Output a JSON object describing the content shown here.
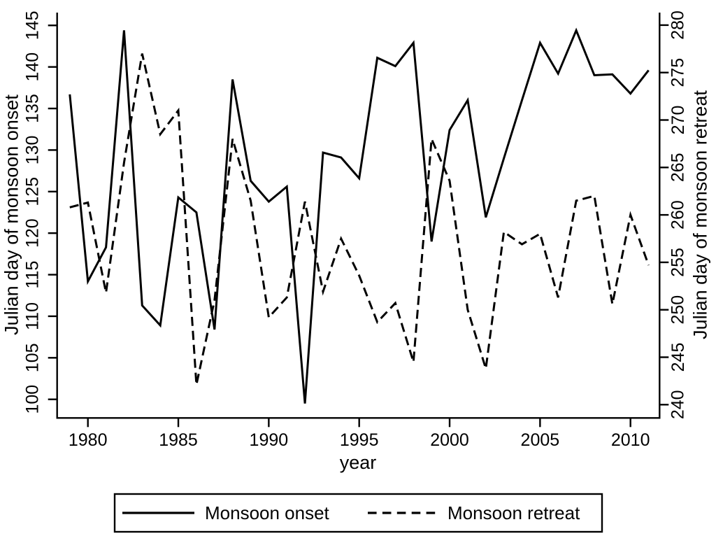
{
  "figure": {
    "background": "#ffffff",
    "line_color": "#000000"
  },
  "chart_data": {
    "type": "line",
    "title": "",
    "xlabel": "year",
    "ylabel_left": "Julian day of monsoon onset",
    "ylabel_right": "Julian day of monsoon retreat",
    "grid": false,
    "legend_position": "bottom",
    "x": [
      1979,
      1980,
      1981,
      1982,
      1983,
      1984,
      1985,
      1986,
      1987,
      1988,
      1989,
      1990,
      1991,
      1992,
      1993,
      1994,
      1995,
      1996,
      1997,
      1998,
      1999,
      2000,
      2001,
      2002,
      2003,
      2004,
      2005,
      2006,
      2007,
      2008,
      2009,
      2010,
      2011
    ],
    "x_ticks": [
      1980,
      1985,
      1990,
      1995,
      2000,
      2005,
      2010
    ],
    "y_left_ticks": [
      100,
      105,
      110,
      115,
      120,
      125,
      130,
      135,
      140,
      145
    ],
    "y_right_ticks": [
      240,
      245,
      250,
      255,
      260,
      265,
      270,
      275,
      280
    ],
    "ylim_left": [
      100,
      145
    ],
    "ylim_right": [
      240,
      280
    ],
    "series": [
      {
        "name": "Monsoon onset",
        "axis": "left",
        "style": "solid",
        "color": "#000000",
        "values": [
          136.7,
          114.2,
          118.3,
          144.4,
          111.3,
          108.9,
          124.3,
          122.5,
          108.4,
          138.5,
          126.3,
          123.8,
          125.6,
          99.5,
          129.7,
          129.1,
          126.6,
          141.1,
          140.1,
          142.9,
          119.0,
          132.4,
          136.0,
          121.9,
          129.0,
          136.0,
          142.9,
          139.2,
          144.4,
          139.0,
          139.1,
          136.8,
          139.6
        ]
      },
      {
        "name": "Monsoon retreat",
        "axis": "right",
        "style": "dashed",
        "color": "#000000",
        "values": [
          260.8,
          261.3,
          251.8,
          265.5,
          277.0,
          268.5,
          271.0,
          242.1,
          251.0,
          268.0,
          261.5,
          249.2,
          251.3,
          261.4,
          251.9,
          257.5,
          253.6,
          248.7,
          250.7,
          244.5,
          268.0,
          263.6,
          250.0,
          243.8,
          258.2,
          256.9,
          258.0,
          251.3,
          261.5,
          262.0,
          250.6,
          260.0,
          254.7
        ]
      }
    ]
  }
}
